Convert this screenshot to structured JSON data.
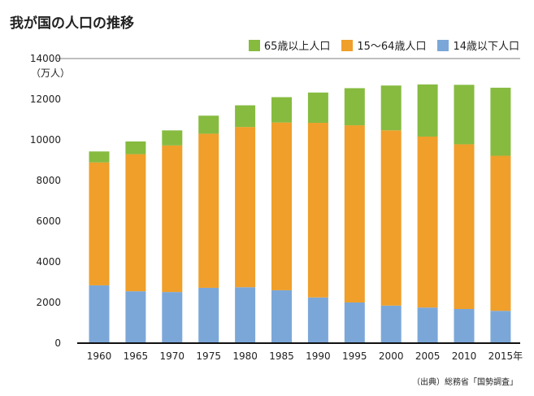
{
  "chart_data": {
    "type": "bar",
    "stacked": true,
    "title": "我が国の人口の推移",
    "ylabel": "（万人）",
    "ylim": [
      0,
      14000
    ],
    "yticks": [
      0,
      2000,
      4000,
      6000,
      8000,
      10000,
      12000,
      14000
    ],
    "categories": [
      "1960",
      "1965",
      "1970",
      "1975",
      "1980",
      "1985",
      "1990",
      "1995",
      "2000",
      "2005",
      "2010",
      "2015年"
    ],
    "series": [
      {
        "name": "14歳以下人口",
        "color": "#7ba7d8",
        "values": [
          2843,
          2553,
          2515,
          2722,
          2751,
          2603,
          2249,
          2001,
          1847,
          1752,
          1680,
          1589
        ]
      },
      {
        "name": "15～64歳人口",
        "color": "#ef9f2a",
        "values": [
          6047,
          6744,
          7212,
          7581,
          7883,
          8251,
          8590,
          8716,
          8622,
          8409,
          8103,
          7629
        ]
      },
      {
        "name": "65歳以上人口",
        "color": "#86bb40",
        "values": [
          540,
          624,
          739,
          887,
          1065,
          1247,
          1489,
          1826,
          2204,
          2567,
          2925,
          3347
        ]
      }
    ],
    "legend_order": [
      2,
      1,
      0
    ],
    "legend": "top-right",
    "grid": false,
    "source": "（出典）総務省「国勢調査」"
  }
}
